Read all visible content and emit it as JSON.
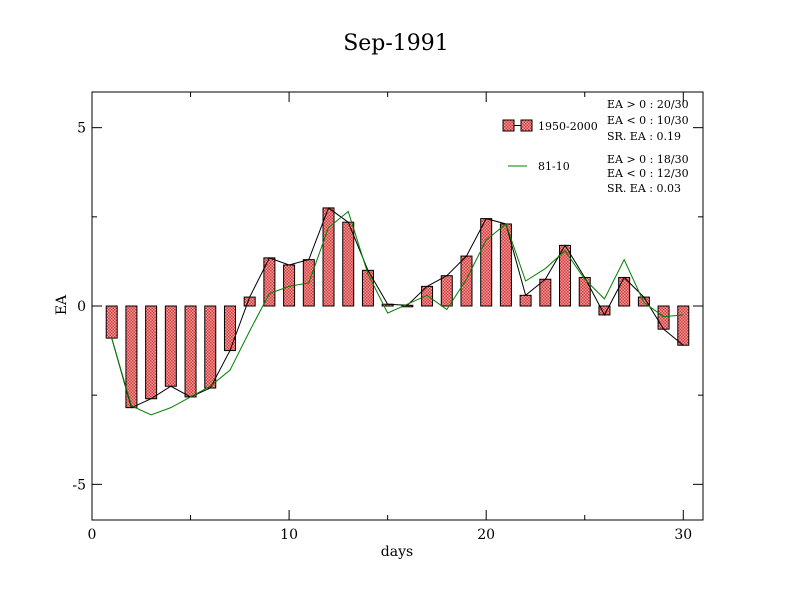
{
  "chart_data": {
    "type": "bar",
    "title": "Sep-1991",
    "xlabel": "days",
    "ylabel": "EA",
    "xlim": [
      0,
      31
    ],
    "ylim": [
      -6,
      6
    ],
    "xticks": [
      0,
      10,
      20,
      30
    ],
    "xtick_labels": [
      "0",
      "10",
      "20",
      "30"
    ],
    "yticks": [
      -5,
      0,
      5
    ],
    "ytick_labels": [
      "-5",
      "0",
      "5"
    ],
    "grid": false,
    "legend_position": "top-right",
    "x": [
      1,
      2,
      3,
      4,
      5,
      6,
      7,
      8,
      9,
      10,
      11,
      12,
      13,
      14,
      15,
      16,
      17,
      18,
      19,
      20,
      21,
      22,
      23,
      24,
      25,
      26,
      27,
      28,
      29,
      30
    ],
    "series": [
      {
        "name": "1950-2000",
        "kind": "bar",
        "color": "#ff8080",
        "pattern": "checkered",
        "values": [
          -0.9,
          -2.85,
          -2.6,
          -2.25,
          -2.55,
          -2.3,
          -1.25,
          0.25,
          1.35,
          1.15,
          1.3,
          2.75,
          2.35,
          1.0,
          0.05,
          0.02,
          0.55,
          0.85,
          1.4,
          2.45,
          2.3,
          0.3,
          0.75,
          1.7,
          0.8,
          -0.25,
          0.8,
          0.25,
          -0.65,
          -1.1
        ]
      },
      {
        "name": "81-10",
        "kind": "line",
        "color": "#008000",
        "values": [
          -0.9,
          -2.8,
          -3.05,
          -2.85,
          -2.55,
          -2.25,
          -1.8,
          -0.7,
          0.35,
          0.55,
          0.65,
          2.2,
          2.65,
          0.9,
          -0.2,
          0.05,
          0.3,
          -0.1,
          0.75,
          1.85,
          2.3,
          0.7,
          1.05,
          1.55,
          0.75,
          0.2,
          1.3,
          0.1,
          -0.3,
          -0.25
        ]
      }
    ],
    "annotations": [
      {
        "series": "1950-2000",
        "lines": [
          "EA > 0 : 20/30",
          "EA < 0 : 10/30",
          "SR. EA :  0.19"
        ]
      },
      {
        "series": "81-10",
        "lines": [
          "EA > 0 : 18/30",
          "EA < 0 : 12/30",
          "SR. EA :  0.03"
        ]
      }
    ]
  }
}
